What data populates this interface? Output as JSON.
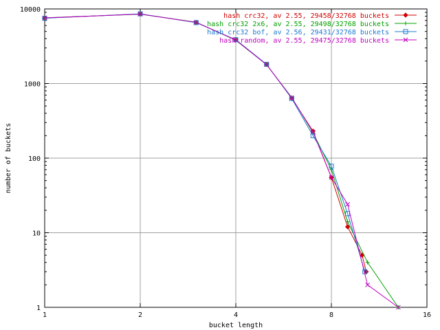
{
  "chart_data": {
    "type": "line",
    "title": "",
    "xlabel": "bucket length",
    "ylabel": "number of buckets",
    "xscale": "log",
    "yscale": "log",
    "xlim": [
      1,
      16
    ],
    "ylim": [
      1,
      10000
    ],
    "x_ticks": [
      1,
      2,
      4,
      8,
      16
    ],
    "x_tick_labels": [
      "1",
      "2",
      "4",
      "8",
      "16"
    ],
    "y_ticks": [
      1,
      10,
      100,
      1000,
      10000
    ],
    "y_tick_labels": [
      "1",
      "10",
      "100",
      "1000",
      "10000"
    ],
    "grid": true,
    "legend_position": "top-right",
    "series": [
      {
        "name": "hash crc32, av 2.55, 29458/32768 buckets",
        "color": "#d00000",
        "marker": "diamond",
        "points": [
          [
            1,
            7550
          ],
          [
            2,
            8550
          ],
          [
            3,
            6600
          ],
          [
            4,
            3850
          ],
          [
            5,
            1800
          ],
          [
            6,
            640
          ],
          [
            7,
            230
          ],
          [
            8,
            55
          ],
          [
            9,
            12
          ],
          [
            10,
            5
          ],
          [
            10.3,
            3
          ]
        ]
      },
      {
        "name": "hash crc32 2x6, av 2.55, 29498/32768 buckets",
        "color": "#00a000",
        "marker": "plus",
        "points": [
          [
            1,
            7600
          ],
          [
            2,
            8500
          ],
          [
            3,
            6650
          ],
          [
            4,
            3800
          ],
          [
            5,
            1790
          ],
          [
            6,
            650
          ],
          [
            7,
            220
          ],
          [
            8,
            70
          ],
          [
            9,
            14
          ],
          [
            10.4,
            4
          ],
          [
            13,
            1
          ]
        ]
      },
      {
        "name": "hash crc32 bof, av 2.56, 29431/32768 buckets",
        "color": "#1a78d0",
        "marker": "square",
        "points": [
          [
            1,
            7500
          ],
          [
            2,
            8600
          ],
          [
            3,
            6550
          ],
          [
            4,
            3870
          ],
          [
            5,
            1810
          ],
          [
            6,
            630
          ],
          [
            7,
            200
          ],
          [
            8,
            78
          ],
          [
            9,
            18
          ],
          [
            10.2,
            3
          ]
        ]
      },
      {
        "name": "hash random, av 2.55, 29475/32768 buckets",
        "color": "#c000c0",
        "marker": "x",
        "points": [
          [
            1,
            7580
          ],
          [
            2,
            8520
          ],
          [
            3,
            6620
          ],
          [
            4,
            3830
          ],
          [
            5,
            1790
          ],
          [
            6,
            645
          ],
          [
            7,
            225
          ],
          [
            8,
            55
          ],
          [
            9,
            24
          ],
          [
            10.4,
            2
          ],
          [
            13,
            1
          ]
        ]
      }
    ]
  }
}
